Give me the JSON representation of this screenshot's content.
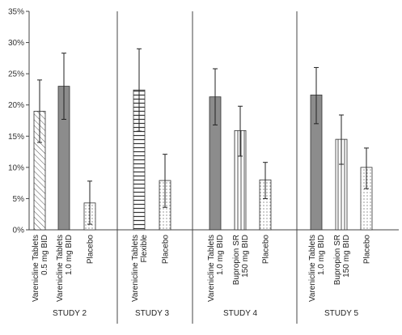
{
  "chart_data": {
    "type": "bar",
    "title": "",
    "xlabel": "",
    "ylabel": "",
    "y_ticks": [
      "0%",
      "5%",
      "10%",
      "15%",
      "20%",
      "25%",
      "30%",
      "35%"
    ],
    "ylim": [
      0,
      35
    ],
    "grid": false,
    "error_bars": true,
    "groups": [
      {
        "name": "STUDY 2",
        "bars": [
          {
            "label": [
              "Varenicline Tablets",
              "0.5 mg BID"
            ],
            "value": 19.0,
            "err_low": 14.0,
            "err_high": 24.0,
            "pattern": "hatch"
          },
          {
            "label": [
              "Varenicline Tablets",
              "1.0 mg BID"
            ],
            "value": 23.0,
            "err_low": 17.7,
            "err_high": 28.3,
            "pattern": "solid"
          },
          {
            "label": [
              "Placebo"
            ],
            "value": 4.3,
            "err_low": 0.9,
            "err_high": 7.8,
            "pattern": "dots"
          }
        ]
      },
      {
        "name": "STUDY 3",
        "bars": [
          {
            "label": [
              "Varenicline Tablets",
              "Flexible"
            ],
            "value": 22.4,
            "err_low": 15.8,
            "err_high": 29.0,
            "pattern": "hlines"
          },
          {
            "label": [
              "Placebo"
            ],
            "value": 7.9,
            "err_low": 3.6,
            "err_high": 12.1,
            "pattern": "dots"
          }
        ]
      },
      {
        "name": "STUDY 4",
        "bars": [
          {
            "label": [
              "Varenicline Tablets",
              "1.0 mg BID"
            ],
            "value": 21.3,
            "err_low": 16.8,
            "err_high": 25.8,
            "pattern": "solid"
          },
          {
            "label": [
              "Bupropion SR",
              "150 mg BID"
            ],
            "value": 15.9,
            "err_low": 11.8,
            "err_high": 19.8,
            "pattern": "vlines"
          },
          {
            "label": [
              "Placebo"
            ],
            "value": 8.0,
            "err_low": 5.0,
            "err_high": 10.8,
            "pattern": "dots"
          }
        ]
      },
      {
        "name": "STUDY 5",
        "bars": [
          {
            "label": [
              "Varenicline Tablets",
              "1.0 mg BID"
            ],
            "value": 21.6,
            "err_low": 17.0,
            "err_high": 26.0,
            "pattern": "solid"
          },
          {
            "label": [
              "Bupropion SR",
              "150 mg BID"
            ],
            "value": 14.5,
            "err_low": 10.5,
            "err_high": 18.4,
            "pattern": "vlines"
          },
          {
            "label": [
              "Placebo"
            ],
            "value": 10.0,
            "err_low": 6.6,
            "err_high": 13.1,
            "pattern": "dots"
          }
        ]
      }
    ],
    "colors": {
      "solid": "#8c8c8c",
      "outline": "#333333",
      "axis": "#444444",
      "background": "#ffffff"
    }
  }
}
